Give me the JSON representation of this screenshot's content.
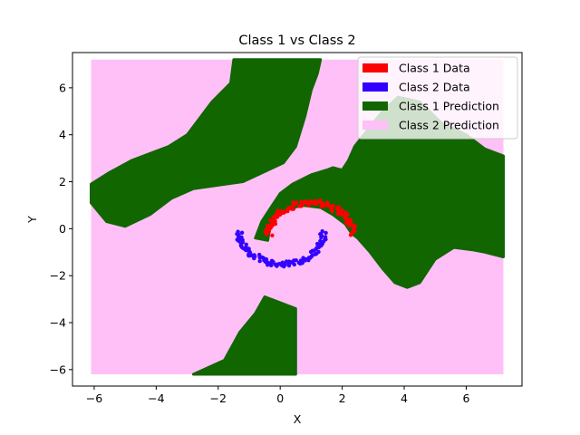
{
  "chart_data": {
    "type": "scatter",
    "title": "Class 1 vs Class 2",
    "xlabel": "X",
    "ylabel": "Y",
    "xlim": [
      -6.7,
      7.8
    ],
    "ylim": [
      -6.7,
      7.5
    ],
    "xticks": [
      -6,
      -4,
      -2,
      0,
      2,
      4,
      6
    ],
    "yticks": [
      -6,
      -4,
      -2,
      0,
      2,
      4,
      6
    ],
    "xtick_labels": [
      "−6",
      "−4",
      "−2",
      "0",
      "2",
      "4",
      "6"
    ],
    "ytick_labels": [
      "−6",
      "−4",
      "−2",
      "0",
      "2",
      "4",
      "6"
    ],
    "grid": false,
    "legend_position": "top-right",
    "prediction_extent": {
      "x": [
        -6.1,
        7.2
      ],
      "y": [
        -6.2,
        7.2
      ]
    },
    "series": [
      {
        "name": "Class 1 Data",
        "color": "#ff0000",
        "shape": "upper moon arc",
        "center": [
          1.0,
          -0.25
        ],
        "radius": 1.35,
        "angle_range_deg": [
          0,
          180
        ]
      },
      {
        "name": "Class 2 Data",
        "color": "#3300ff",
        "shape": "lower moon arc",
        "center": [
          0.05,
          -0.15
        ],
        "radius": 1.35,
        "angle_range_deg": [
          180,
          360
        ]
      },
      {
        "name": "Class 1 Prediction",
        "color": "#116600",
        "regions": [
          [
            [
              -6.1,
              1.9
            ],
            [
              -5.5,
              2.4
            ],
            [
              -4.8,
              2.9
            ],
            [
              -4.0,
              3.3
            ],
            [
              -3.6,
              3.5
            ],
            [
              -3.0,
              4.0
            ],
            [
              -2.6,
              4.7
            ],
            [
              -2.2,
              5.4
            ],
            [
              -1.6,
              6.2
            ],
            [
              -1.5,
              7.2
            ],
            [
              1.3,
              7.2
            ],
            [
              1.2,
              6.6
            ],
            [
              1.0,
              5.9
            ],
            [
              0.8,
              4.8
            ],
            [
              0.5,
              3.5
            ],
            [
              0.1,
              2.8
            ],
            [
              -1.2,
              2.0
            ],
            [
              -2.8,
              1.7
            ],
            [
              -3.5,
              1.3
            ],
            [
              -4.2,
              0.6
            ],
            [
              -5.0,
              0.1
            ],
            [
              -5.6,
              0.3
            ],
            [
              -6.1,
              1.1
            ]
          ],
          [
            [
              -0.4,
              -0.5
            ],
            [
              -0.3,
              0.3
            ],
            [
              0.2,
              0.8
            ],
            [
              0.7,
              1.0
            ],
            [
              1.3,
              0.9
            ],
            [
              1.7,
              0.6
            ],
            [
              2.1,
              0.2
            ],
            [
              2.3,
              -0.2
            ],
            [
              2.5,
              -0.4
            ],
            [
              2.9,
              -1.0
            ],
            [
              3.3,
              -1.7
            ],
            [
              3.7,
              -2.3
            ],
            [
              4.1,
              -2.5
            ],
            [
              4.5,
              -2.3
            ],
            [
              5.0,
              -1.3
            ],
            [
              5.6,
              -0.8
            ],
            [
              6.2,
              -0.9
            ],
            [
              6.6,
              -1.0
            ],
            [
              7.2,
              -1.2
            ],
            [
              7.2,
              3.1
            ],
            [
              6.6,
              3.4
            ],
            [
              6.0,
              4.0
            ],
            [
              5.2,
              4.5
            ],
            [
              4.5,
              5.4
            ],
            [
              3.8,
              5.6
            ],
            [
              3.3,
              5.0
            ],
            [
              3.0,
              4.5
            ],
            [
              2.7,
              4.0
            ],
            [
              2.4,
              3.5
            ],
            [
              2.2,
              2.9
            ],
            [
              2.0,
              2.5
            ],
            [
              1.7,
              2.6
            ],
            [
              1.5,
              2.5
            ],
            [
              1.0,
              2.3
            ],
            [
              0.4,
              1.9
            ],
            [
              0.0,
              1.5
            ],
            [
              -0.3,
              0.9
            ],
            [
              -0.6,
              0.3
            ],
            [
              -0.8,
              -0.4
            ]
          ],
          [
            [
              -2.8,
              -6.2
            ],
            [
              -1.8,
              -5.6
            ],
            [
              -1.3,
              -4.4
            ],
            [
              -0.8,
              -3.6
            ],
            [
              -0.5,
              -2.9
            ],
            [
              -0.1,
              -3.1
            ],
            [
              0.3,
              -3.3
            ],
            [
              0.5,
              -3.4
            ],
            [
              0.5,
              -6.2
            ]
          ]
        ]
      },
      {
        "name": "Class 2 Prediction",
        "color": "#ffc0f8"
      }
    ]
  }
}
